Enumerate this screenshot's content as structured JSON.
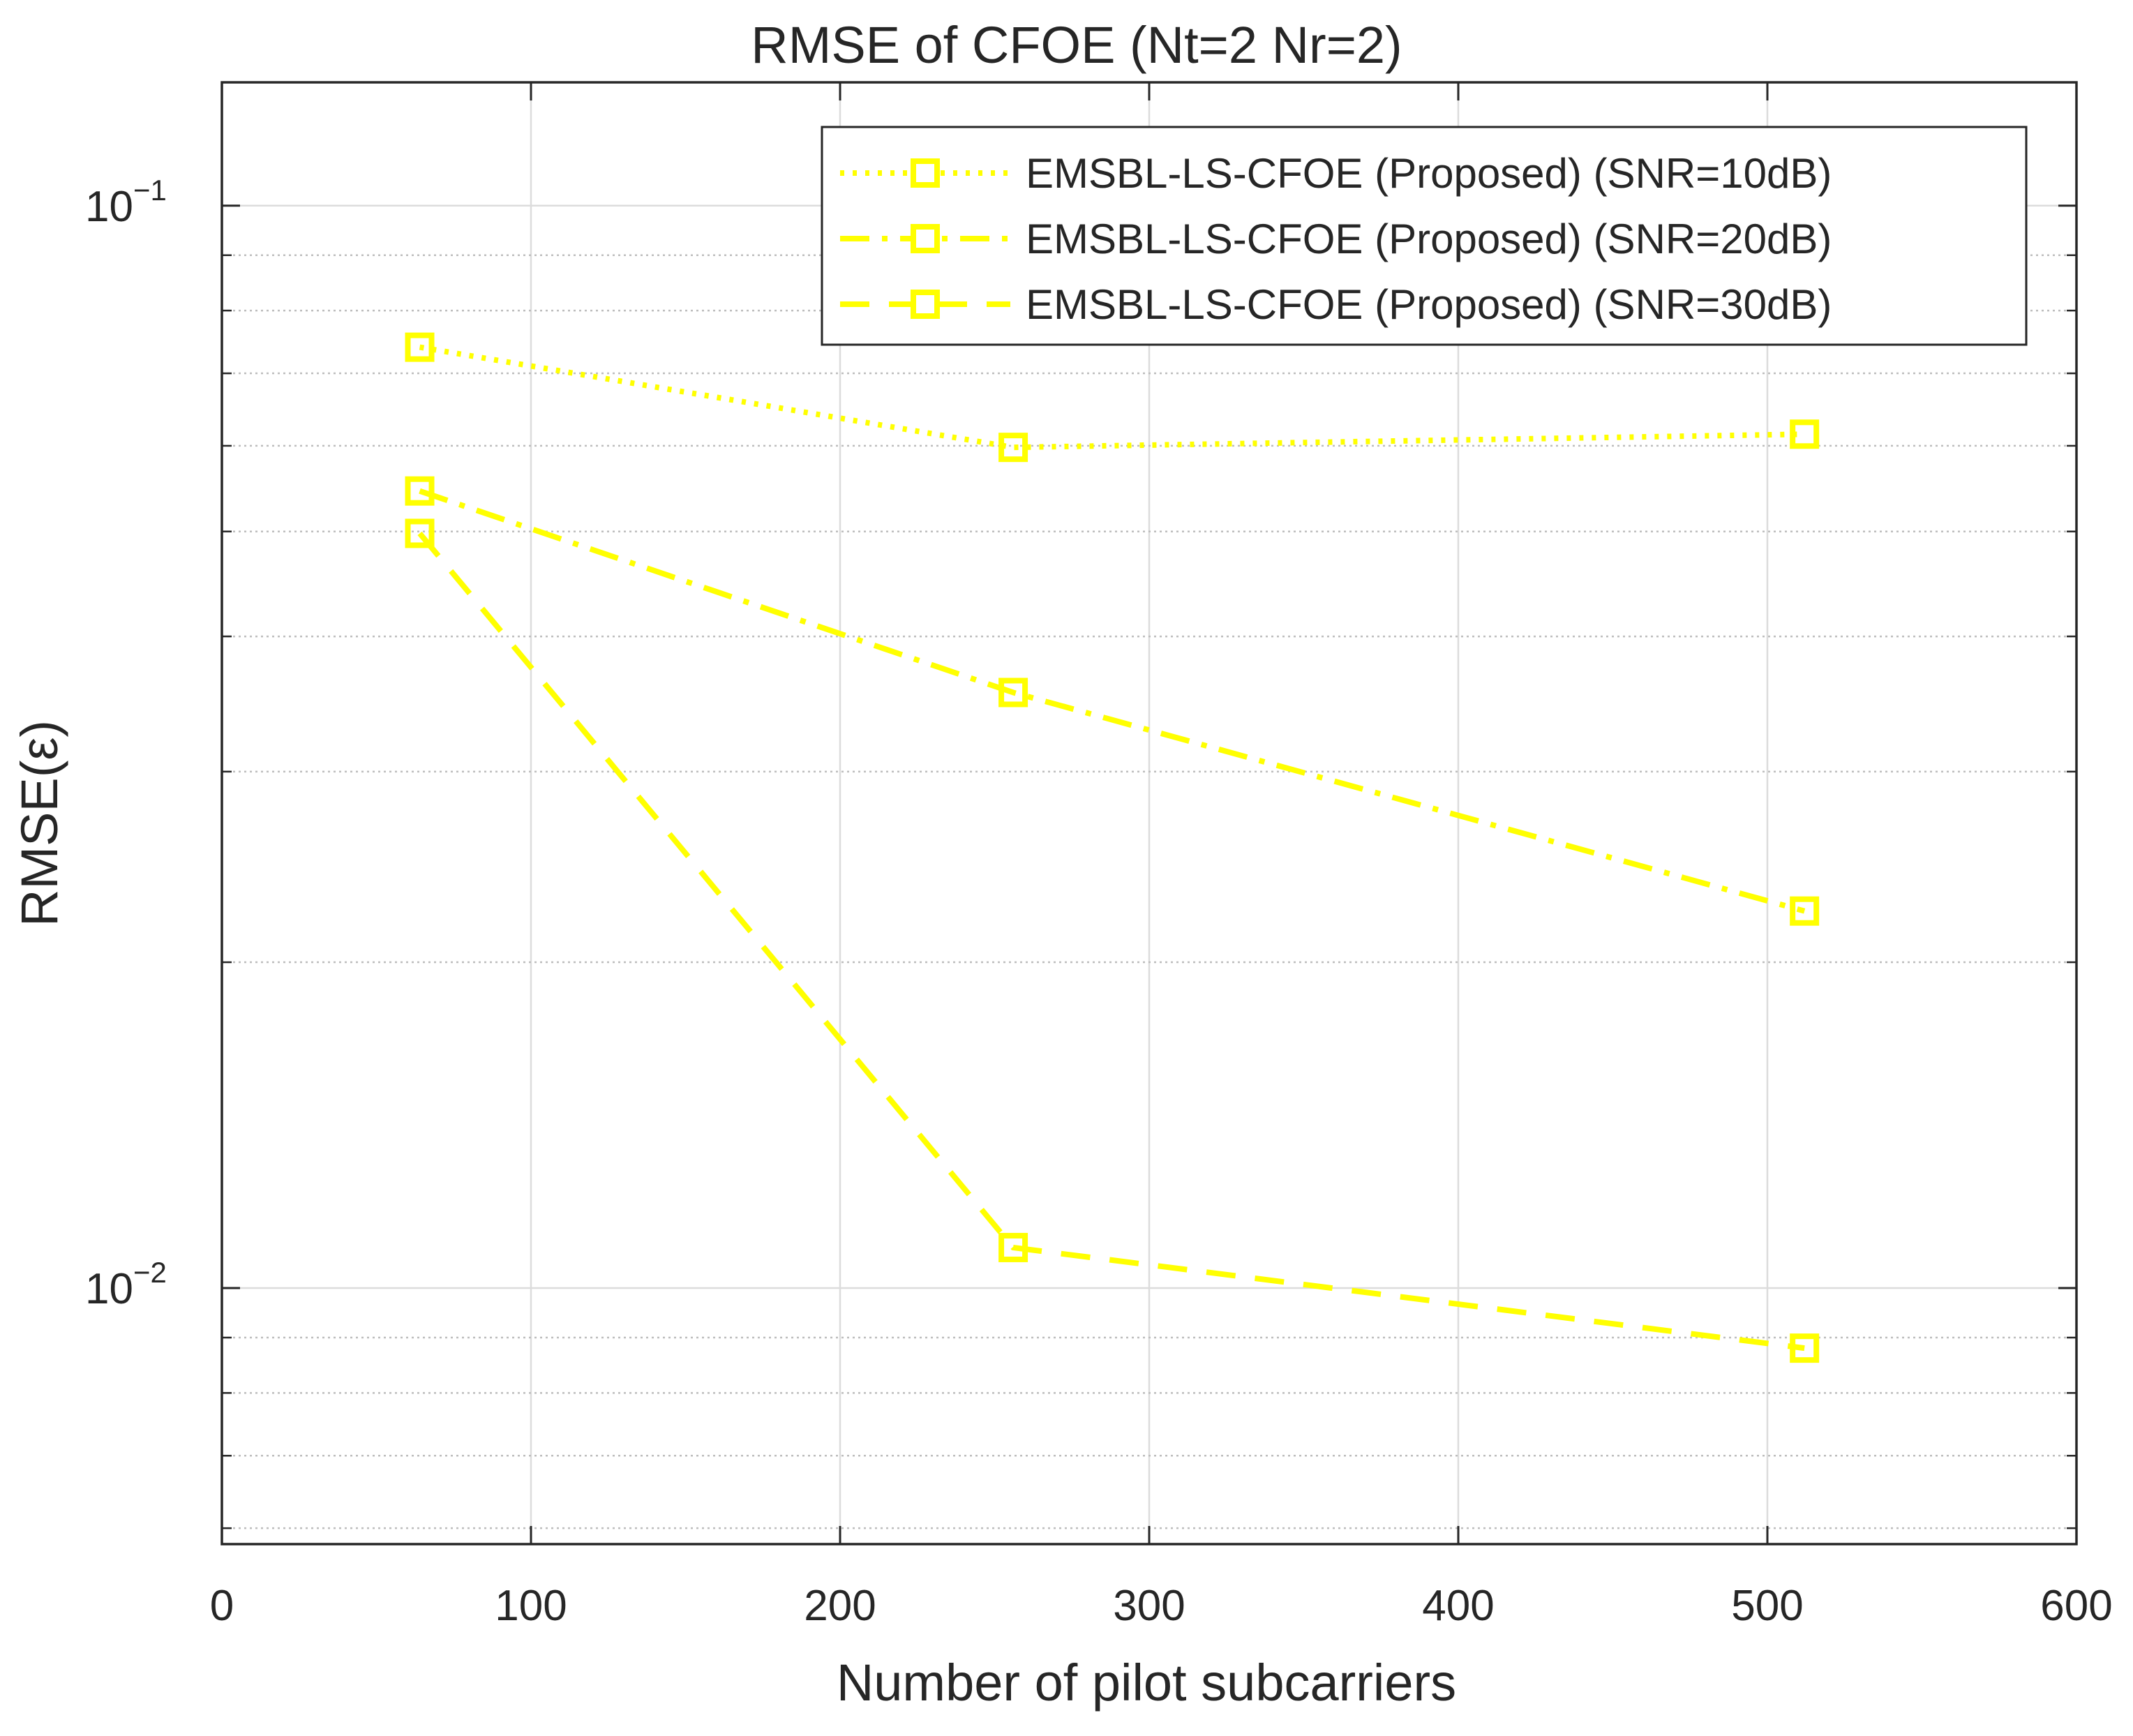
{
  "chart_data": {
    "type": "line",
    "title": "RMSE of CFOE (Nt=2 Nr=2)",
    "xlabel": "Number of pilot subcarriers",
    "ylabel": "RMSE(ε)",
    "xlim": [
      0,
      600
    ],
    "ylim": [
      0.0058,
      0.13
    ],
    "yscale": "log",
    "grid": true,
    "legend_position": "top-right",
    "x_ticks": [
      0,
      100,
      200,
      300,
      400,
      500,
      600
    ],
    "x_tick_labels": [
      "0",
      "100",
      "200",
      "300",
      "400",
      "500",
      "600"
    ],
    "y_ticks": [
      0.01,
      0.1
    ],
    "y_tick_labels": [
      {
        "base": "10",
        "exp": "−2"
      },
      {
        "base": "10",
        "exp": "−1"
      }
    ],
    "x": [
      64,
      256,
      512
    ],
    "series": [
      {
        "name": "EMSBL-LS-CFOE (Proposed) (SNR=10dB)",
        "values": [
          0.074,
          0.0598,
          0.0615
        ],
        "linestyle": "dotted",
        "marker": "square",
        "color": "#FFFF00"
      },
      {
        "name": "EMSBL-LS-CFOE (Proposed) (SNR=20dB)",
        "values": [
          0.0545,
          0.0355,
          0.0223
        ],
        "linestyle": "dashdot",
        "marker": "square",
        "color": "#FFFF00"
      },
      {
        "name": "EMSBL-LS-CFOE (Proposed) (SNR=30dB)",
        "values": [
          0.0498,
          0.0109,
          0.0088
        ],
        "linestyle": "dashed",
        "marker": "square",
        "color": "#FFFF00"
      }
    ]
  },
  "colors": {
    "axis": "#262626",
    "grid": "#DCDCDC",
    "minor_grid": "#BDBDBD",
    "series": "#FFFF00"
  }
}
